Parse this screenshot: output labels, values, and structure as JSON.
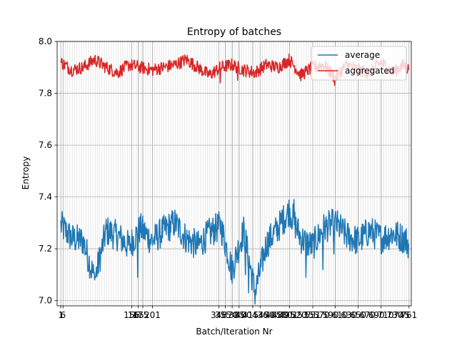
{
  "chart_data": {
    "type": "line",
    "title": "Entropy of batches",
    "xlabel": "Batch/Iteration Nr",
    "ylabel": "Entropy",
    "xlim": [
      -7,
      766
    ],
    "ylim": [
      6.98,
      8.0
    ],
    "y_ticks": [
      7.0,
      7.2,
      7.4,
      7.6,
      7.8,
      8.0
    ],
    "y_tick_labels": [
      "7.0",
      "7.2",
      "7.4",
      "7.6",
      "7.8",
      "8.0"
    ],
    "grid": true,
    "legend_position": "upper right",
    "x_tick_label_examples": [
      "1",
      "6",
      "156",
      "201",
      "346",
      "436",
      "501",
      "551"
    ],
    "series": [
      {
        "name": "average",
        "color": "#1f77b4",
        "x": [
          1,
          25,
          50,
          75,
          100,
          125,
          150,
          175,
          200,
          225,
          250,
          275,
          300,
          325,
          350,
          375,
          400,
          425,
          450,
          475,
          500,
          525,
          550,
          575,
          600,
          625,
          650,
          675,
          700,
          725,
          750,
          760
        ],
        "values": [
          7.29,
          7.24,
          7.23,
          7.08,
          7.27,
          7.25,
          7.21,
          7.28,
          7.23,
          7.27,
          7.3,
          7.24,
          7.21,
          7.26,
          7.29,
          7.12,
          7.27,
          7.03,
          7.22,
          7.28,
          7.35,
          7.24,
          7.21,
          7.28,
          7.3,
          7.25,
          7.23,
          7.27,
          7.24,
          7.26,
          7.24,
          7.22
        ]
      },
      {
        "name": "aggregated",
        "color": "#d62728",
        "x": [
          1,
          25,
          50,
          75,
          100,
          125,
          150,
          175,
          200,
          225,
          250,
          275,
          300,
          325,
          350,
          375,
          400,
          425,
          450,
          475,
          500,
          525,
          550,
          575,
          600,
          625,
          650,
          675,
          700,
          725,
          750,
          760
        ],
        "values": [
          7.92,
          7.89,
          7.9,
          7.93,
          7.9,
          7.88,
          7.91,
          7.9,
          7.89,
          7.9,
          7.91,
          7.93,
          7.9,
          7.87,
          7.9,
          7.91,
          7.89,
          7.88,
          7.91,
          7.9,
          7.93,
          7.87,
          7.9,
          7.91,
          7.86,
          7.91,
          7.89,
          7.88,
          7.92,
          7.88,
          7.91,
          7.89
        ]
      }
    ]
  }
}
